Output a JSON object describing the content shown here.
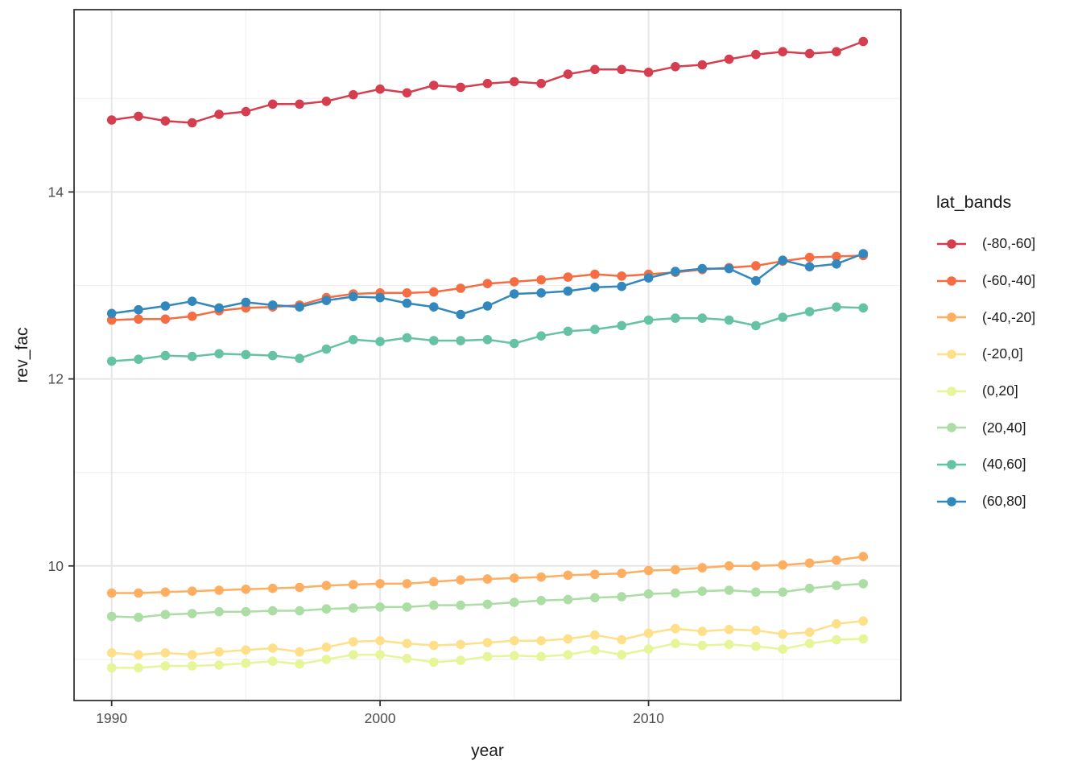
{
  "chart_data": {
    "type": "line",
    "xlabel": "year",
    "ylabel": "rev_fac",
    "legend_title": "lat_bands",
    "x": [
      1990,
      1991,
      1992,
      1993,
      1994,
      1995,
      1996,
      1997,
      1998,
      1999,
      2000,
      2001,
      2002,
      2003,
      2004,
      2005,
      2006,
      2007,
      2008,
      2009,
      2010,
      2011,
      2012,
      2013,
      2014,
      2015,
      2016,
      2017,
      2018
    ],
    "xlim": [
      1988.6,
      2019.4
    ],
    "ylim": [
      8.56,
      15.95
    ],
    "x_breaks": [
      1990,
      2000,
      2010
    ],
    "x_break_labels": [
      "1990",
      "2000",
      "2010"
    ],
    "x_minor_breaks": [
      1995,
      2005,
      2015
    ],
    "y_breaks": [
      10,
      12,
      14
    ],
    "y_break_labels": [
      "10",
      "12",
      "14"
    ],
    "y_minor_breaks": [
      9,
      11,
      13,
      15
    ],
    "grid": true,
    "legend_position": "right",
    "series": [
      {
        "name": "(-80,-60]",
        "color": "#d53e4f",
        "values": [
          14.77,
          14.81,
          14.76,
          14.74,
          14.83,
          14.86,
          14.94,
          14.94,
          14.97,
          15.04,
          15.1,
          15.06,
          15.14,
          15.12,
          15.16,
          15.18,
          15.16,
          15.26,
          15.31,
          15.31,
          15.28,
          15.34,
          15.36,
          15.42,
          15.47,
          15.5,
          15.48,
          15.5,
          15.61
        ]
      },
      {
        "name": "(-60,-40]",
        "color": "#f46d43",
        "values": [
          12.63,
          12.64,
          12.64,
          12.67,
          12.73,
          12.76,
          12.77,
          12.79,
          12.87,
          12.91,
          12.92,
          12.92,
          12.93,
          12.97,
          13.02,
          13.04,
          13.06,
          13.09,
          13.12,
          13.1,
          13.12,
          13.14,
          13.17,
          13.19,
          13.21,
          13.26,
          13.3,
          13.31,
          13.32
        ]
      },
      {
        "name": "(-40,-20]",
        "color": "#fdae61",
        "values": [
          9.71,
          9.71,
          9.72,
          9.73,
          9.74,
          9.75,
          9.76,
          9.77,
          9.79,
          9.8,
          9.81,
          9.81,
          9.83,
          9.85,
          9.86,
          9.87,
          9.88,
          9.9,
          9.91,
          9.92,
          9.95,
          9.96,
          9.98,
          10.0,
          10.0,
          10.01,
          10.03,
          10.06,
          10.1
        ]
      },
      {
        "name": "(-20,0]",
        "color": "#fee08b",
        "values": [
          9.07,
          9.05,
          9.07,
          9.05,
          9.08,
          9.1,
          9.12,
          9.08,
          9.13,
          9.19,
          9.2,
          9.17,
          9.15,
          9.16,
          9.18,
          9.2,
          9.2,
          9.22,
          9.26,
          9.21,
          9.28,
          9.33,
          9.3,
          9.32,
          9.31,
          9.27,
          9.29,
          9.38,
          9.41
        ]
      },
      {
        "name": "(0,20]",
        "color": "#e6f598",
        "values": [
          8.91,
          8.91,
          8.93,
          8.93,
          8.94,
          8.96,
          8.98,
          8.95,
          9.0,
          9.05,
          9.05,
          9.01,
          8.97,
          8.99,
          9.03,
          9.04,
          9.03,
          9.05,
          9.1,
          9.05,
          9.11,
          9.17,
          9.15,
          9.16,
          9.14,
          9.11,
          9.17,
          9.21,
          9.22
        ]
      },
      {
        "name": "(20,40]",
        "color": "#abdda4",
        "values": [
          9.46,
          9.45,
          9.48,
          9.49,
          9.51,
          9.51,
          9.52,
          9.52,
          9.54,
          9.55,
          9.56,
          9.56,
          9.58,
          9.58,
          9.59,
          9.61,
          9.63,
          9.64,
          9.66,
          9.67,
          9.7,
          9.71,
          9.73,
          9.74,
          9.72,
          9.72,
          9.76,
          9.79,
          9.81
        ]
      },
      {
        "name": "(40,60]",
        "color": "#66c2a5",
        "values": [
          12.19,
          12.21,
          12.25,
          12.24,
          12.27,
          12.26,
          12.25,
          12.22,
          12.32,
          12.42,
          12.4,
          12.44,
          12.41,
          12.41,
          12.42,
          12.38,
          12.46,
          12.51,
          12.53,
          12.57,
          12.63,
          12.65,
          12.65,
          12.63,
          12.57,
          12.66,
          12.72,
          12.77,
          12.76
        ]
      },
      {
        "name": "(60,80]",
        "color": "#3288bd",
        "values": [
          12.7,
          12.74,
          12.78,
          12.83,
          12.76,
          12.82,
          12.79,
          12.77,
          12.84,
          12.88,
          12.87,
          12.81,
          12.77,
          12.69,
          12.78,
          12.91,
          12.92,
          12.94,
          12.98,
          12.99,
          13.08,
          13.15,
          13.18,
          13.18,
          13.05,
          13.27,
          13.2,
          13.23,
          13.34
        ]
      }
    ],
    "style": {
      "panel_background": "#ffffff",
      "panel_border_color": "#333333",
      "grid_major_color": "#e7e7e7",
      "grid_minor_color": "#f0f0f0",
      "tick_mark_color": "#333333",
      "tick_label_color": "#4d4d4d",
      "axis_title_color": "#1a1a1a"
    }
  }
}
